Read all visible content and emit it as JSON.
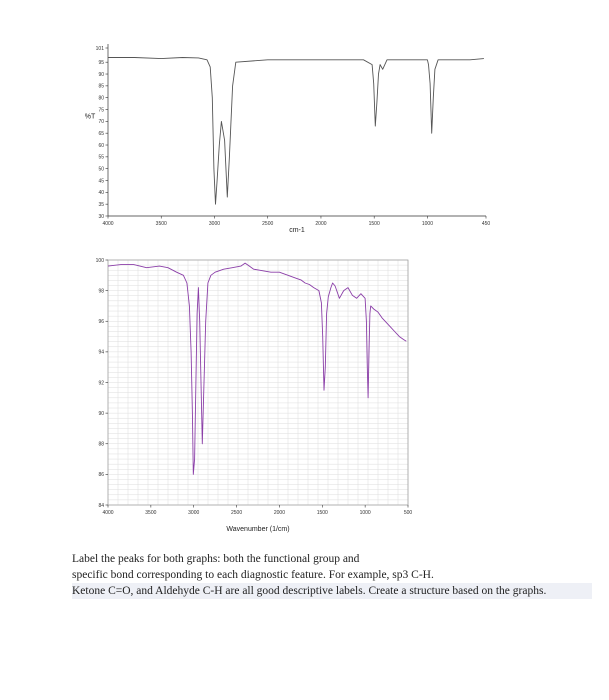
{
  "chart_data": [
    {
      "type": "line",
      "title": "",
      "xlabel": "cm-1",
      "ylabel": "%T",
      "xlim": [
        4000,
        450
      ],
      "ylim": [
        30,
        101
      ],
      "x_ticks": [
        "4000",
        "3500",
        "3000",
        "2500",
        "2000",
        "1500",
        "1000",
        "450"
      ],
      "x_tick_values": [
        4000,
        3500,
        3000,
        2500,
        2000,
        1500,
        1000,
        450
      ],
      "y_ticks": [
        "101",
        "95",
        "90",
        "85",
        "80",
        "75",
        "70",
        "65",
        "60",
        "55",
        "50",
        "45",
        "40",
        "35",
        "30"
      ],
      "y_tick_values": [
        101,
        95,
        90,
        85,
        80,
        75,
        70,
        65,
        60,
        55,
        50,
        45,
        40,
        35,
        30
      ],
      "grid": false,
      "series": [
        {
          "color": "#555555",
          "x": [
            4000,
            3750,
            3500,
            3300,
            3150,
            3070,
            3040,
            3020,
            3005,
            2990,
            2975,
            2955,
            2935,
            2905,
            2880,
            2860,
            2830,
            2800,
            2500,
            2200,
            2000,
            1800,
            1600,
            1520,
            1505,
            1490,
            1475,
            1460,
            1445,
            1420,
            1380,
            1300,
            1200,
            1100,
            1000,
            990,
            975,
            960,
            945,
            930,
            900,
            800,
            700,
            600,
            470
          ],
          "y": [
            97,
            97,
            96.5,
            97,
            96.8,
            96,
            93,
            80,
            50,
            35,
            45,
            60,
            70,
            62,
            38,
            55,
            85,
            95,
            96,
            96,
            96,
            96,
            96,
            94,
            86,
            68,
            78,
            90,
            94,
            92,
            96,
            96,
            96,
            96,
            96,
            94,
            86,
            65,
            80,
            92,
            96,
            96,
            96,
            96,
            96.5
          ]
        }
      ]
    },
    {
      "type": "line",
      "title": "",
      "xlabel": "Wavenumber (1/cm)",
      "ylabel": "",
      "xlim": [
        4000,
        500
      ],
      "ylim": [
        84,
        100
      ],
      "x_ticks": [
        "4000",
        "3500",
        "3000",
        "2500",
        "2000",
        "1500",
        "1000",
        "500"
      ],
      "x_tick_values": [
        4000,
        3500,
        3000,
        2500,
        2000,
        1500,
        1000,
        500
      ],
      "y_ticks": [
        "100",
        "98",
        "96",
        "94",
        "92",
        "90",
        "88",
        "86",
        "84"
      ],
      "y_tick_values": [
        100,
        98,
        96,
        94,
        92,
        90,
        88,
        86,
        84
      ],
      "grid": true,
      "series": [
        {
          "color": "#8b3fa8",
          "x": [
            4000,
            3850,
            3700,
            3550,
            3400,
            3300,
            3200,
            3120,
            3080,
            3050,
            3030,
            3015,
            3005,
            2990,
            2975,
            2960,
            2945,
            2930,
            2915,
            2900,
            2880,
            2860,
            2835,
            2800,
            2750,
            2650,
            2550,
            2450,
            2400,
            2350,
            2300,
            2200,
            2100,
            2000,
            1900,
            1800,
            1750,
            1700,
            1650,
            1600,
            1540,
            1510,
            1495,
            1480,
            1465,
            1450,
            1430,
            1400,
            1380,
            1350,
            1300,
            1250,
            1200,
            1150,
            1100,
            1050,
            1000,
            985,
            975,
            965,
            955,
            945,
            935,
            900,
            850,
            800,
            750,
            700,
            650,
            600,
            550,
            520
          ],
          "y": [
            99.6,
            99.7,
            99.7,
            99.5,
            99.6,
            99.5,
            99.2,
            99,
            98.5,
            97,
            94,
            90,
            86,
            87,
            92,
            96.5,
            98.2,
            96,
            92,
            88,
            92,
            96,
            98.5,
            99,
            99.2,
            99.4,
            99.5,
            99.6,
            99.8,
            99.6,
            99.4,
            99.3,
            99.2,
            99.2,
            99,
            98.8,
            98.7,
            98.5,
            98.4,
            98.2,
            98,
            97.2,
            95,
            91.5,
            93,
            96.5,
            97.6,
            98.2,
            98.5,
            98.3,
            97.5,
            98,
            98.2,
            97.7,
            97.5,
            97.8,
            97.5,
            96,
            93,
            91,
            94,
            96.5,
            97,
            96.8,
            96.6,
            96.2,
            95.9,
            95.6,
            95.3,
            95,
            94.8,
            94.7
          ]
        }
      ]
    }
  ],
  "caption": {
    "line1": "Label the peaks for both graphs: both the functional group and",
    "line2": "specific bond corresponding to each diagnostic feature. For example, sp3 C-H.",
    "line3": "Ketone C=O, and Aldehyde C-H are all good descriptive labels. Create a structure based on the graphs."
  }
}
